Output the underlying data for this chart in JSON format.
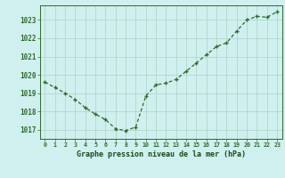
{
  "hours": [
    0,
    1,
    2,
    3,
    4,
    5,
    6,
    7,
    8,
    9,
    10,
    11,
    12,
    13,
    14,
    15,
    16,
    17,
    18,
    19,
    20,
    21,
    22,
    23
  ],
  "pressure": [
    1019.6,
    1019.3,
    1019.0,
    1018.65,
    1018.2,
    1017.85,
    1017.55,
    1017.05,
    1016.95,
    1017.15,
    1018.85,
    1019.45,
    1019.55,
    1019.75,
    1020.2,
    1020.65,
    1021.1,
    1021.55,
    1021.75,
    1022.4,
    1023.0,
    1023.2,
    1023.15,
    1023.45
  ],
  "line_color": "#2d6a2d",
  "marker": "P",
  "marker_size": 2.5,
  "bg_color": "#cff0ee",
  "grid_color": "#b0d8cc",
  "xlabel": "Graphe pression niveau de la mer (hPa)",
  "xlabel_color": "#1a4a1a",
  "tick_label_color": "#2d6a2d",
  "ylim": [
    1016.5,
    1023.8
  ],
  "yticks": [
    1017,
    1018,
    1019,
    1020,
    1021,
    1022,
    1023
  ],
  "xlim": [
    -0.5,
    23.5
  ],
  "xticks": [
    0,
    1,
    2,
    3,
    4,
    5,
    6,
    7,
    8,
    9,
    10,
    11,
    12,
    13,
    14,
    15,
    16,
    17,
    18,
    19,
    20,
    21,
    22,
    23
  ]
}
